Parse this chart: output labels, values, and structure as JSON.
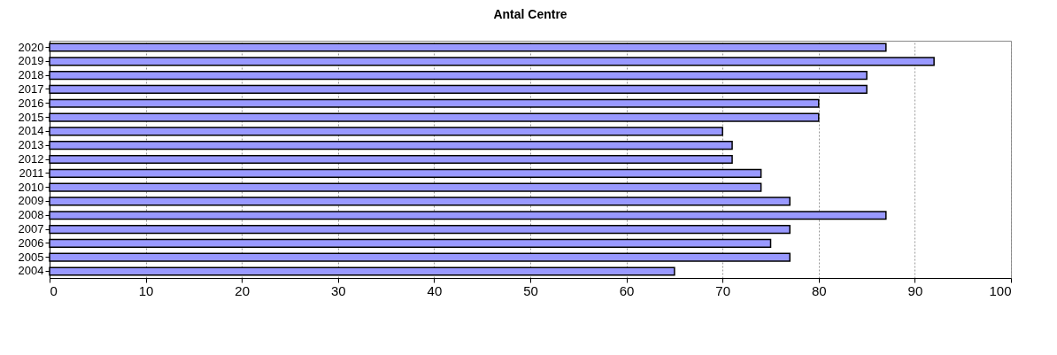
{
  "chart_data": {
    "type": "bar",
    "title": "Antal Centre",
    "orientation": "horizontal",
    "categories": [
      "2020",
      "2019",
      "2018",
      "2017",
      "2016",
      "2015",
      "2014",
      "2013",
      "2012",
      "2011",
      "2010",
      "2009",
      "2008",
      "2007",
      "2006",
      "2005",
      "2004"
    ],
    "values": [
      87,
      92,
      85,
      85,
      80,
      80,
      70,
      71,
      71,
      74,
      74,
      77,
      87,
      77,
      75,
      77,
      65
    ],
    "color": "#9999ff",
    "xlim": [
      0,
      100
    ],
    "xticks": [
      0,
      10,
      20,
      30,
      40,
      50,
      60,
      70,
      80,
      90,
      100
    ],
    "grid": "x"
  }
}
